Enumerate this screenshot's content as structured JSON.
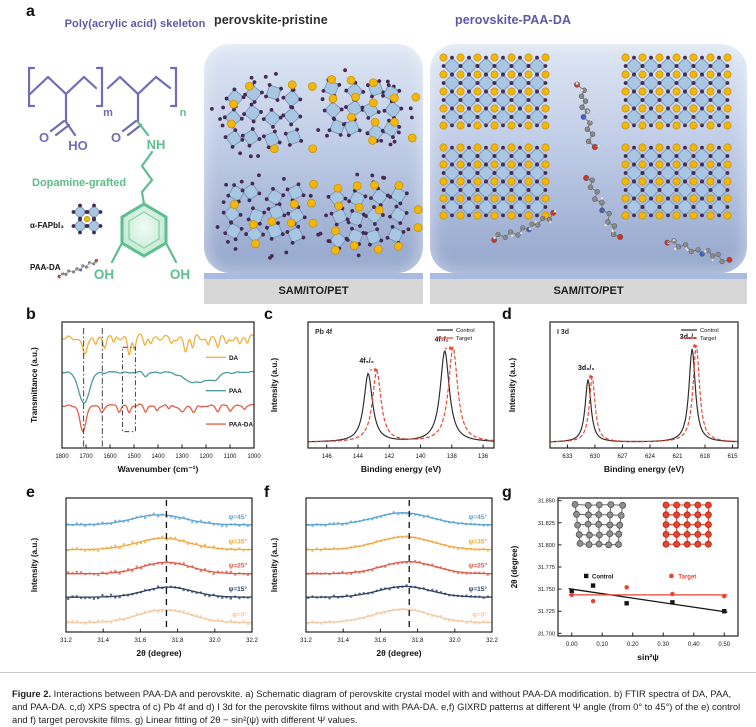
{
  "panel_letters": {
    "a": "a",
    "b": "b",
    "c": "c",
    "d": "d",
    "e": "e",
    "f": "f",
    "g": "g"
  },
  "colors": {
    "accent_purple": "#5b59a6",
    "accent_green": "#5bbd87",
    "control": "#2a2a2a",
    "target": "#e8432e"
  },
  "panel_a": {
    "left": {
      "title": "Poly(acrylic acid) skeleton",
      "dopamine": "Dopamine-grafted",
      "fapbi": "α-FAPbI₃",
      "paada": "PAA-DA",
      "ho": "HO",
      "nh": "NH",
      "oh1": "OH",
      "oh2": "OH",
      "o1": "O",
      "o2": "O",
      "m": "m",
      "n": "n"
    },
    "pristine": {
      "title": "perovskite-pristine",
      "substrate": "SAM/ITO/PET"
    },
    "paada_panel": {
      "title": "perovskite-PAA-DA",
      "substrate": "SAM/ITO/PET"
    }
  },
  "caption": {
    "label": "Figure 2.",
    "text": " Interactions between PAA-DA and perovskite. a) Schematic diagram of perovskite crystal model with and without PAA-DA modification. b) FTIR spectra of DA, PAA, and PAA-DA. c,d) XPS spectra of c) Pb 4f and d) I 3d for the perovskite films without and with PAA-DA. e,f) GIXRD patterns at different Ψ angle (from 0° to 45°) of the e) control and f) target perovskite films. g) Linear fitting of 2θ − sin²(ψ) with different Ψ values."
  },
  "chart_data": [
    {
      "panel": "b",
      "name": "ftir-spectra",
      "type": "line",
      "xlabel": "Wavenumber (cm⁻¹)",
      "ylabel": "Transmittance (a.u.)",
      "x_ticks": [
        "1800",
        "1700",
        "1600",
        "1500",
        "1400",
        "1300",
        "1200",
        "1100",
        "1000"
      ],
      "x_range": [
        1800,
        1000
      ],
      "series": [
        {
          "name": "DA",
          "color": "#efb13f",
          "baseline": 0.875,
          "wiggle": 0.013,
          "dips": [
            [
              1705,
              13,
              0.155
            ],
            [
              1660,
              8,
              0.05
            ],
            [
              1622,
              8,
              0.06
            ],
            [
              1585,
              7,
              0.05
            ],
            [
              1520,
              9,
              0.125
            ],
            [
              1498,
              7,
              0.085
            ],
            [
              1455,
              8,
              0.05
            ],
            [
              1430,
              7,
              0.04
            ],
            [
              1345,
              9,
              0.055
            ],
            [
              1285,
              10,
              0.105
            ],
            [
              1255,
              8,
              0.085
            ],
            [
              1190,
              8,
              0.05
            ],
            [
              1150,
              8,
              0.07
            ],
            [
              1115,
              8,
              0.055
            ],
            [
              1060,
              9,
              0.05
            ],
            [
              1028,
              7,
              0.04
            ]
          ]
        },
        {
          "name": "PAA",
          "color": "#4f9aa0",
          "baseline": 0.6,
          "wiggle": 0.004,
          "dips": [
            [
              1708,
              30,
              0.25
            ],
            [
              1452,
              12,
              0.03
            ],
            [
              1245,
              60,
              0.085
            ],
            [
              1165,
              30,
              0.05
            ]
          ]
        },
        {
          "name": "PAA-DA",
          "color": "#e2604a",
          "baseline": 0.335,
          "wiggle": 0.006,
          "dips": [
            [
              1712,
              17,
              0.215
            ],
            [
              1635,
              10,
              0.05
            ],
            [
              1562,
              9,
              0.045
            ],
            [
              1520,
              8,
              0.05
            ],
            [
              1452,
              9,
              0.045
            ],
            [
              1405,
              8,
              0.04
            ],
            [
              1355,
              8,
              0.03
            ],
            [
              1300,
              14,
              0.05
            ],
            [
              1250,
              12,
              0.06
            ],
            [
              1150,
              10,
              0.045
            ],
            [
              1100,
              9,
              0.035
            ],
            [
              1040,
              8,
              0.03
            ]
          ]
        }
      ],
      "guide_lines": [
        1710,
        1632
      ],
      "guide_box": {
        "x1": 1548,
        "x2": 1494,
        "y1": 0.13,
        "y2": 0.8
      },
      "legend": [
        {
          "label": "DA",
          "y": 0.72
        },
        {
          "label": "PAA",
          "y": 0.455
        },
        {
          "label": "PAA-DA",
          "y": 0.19
        }
      ]
    },
    {
      "panel": "c",
      "name": "xps-pb4f",
      "type": "line",
      "inner_title": "Pb 4f",
      "xlabel": "Binding energy (eV)",
      "ylabel": "Intensity (a.u.)",
      "x_ticks": [
        "146",
        "144",
        "142",
        "140",
        "138",
        "136"
      ],
      "x_range": [
        147.2,
        135.3
      ],
      "baseline": 0.05,
      "series": [
        {
          "name": "Control",
          "color": "#2a2a2a",
          "dashed": false,
          "peaks": [
            [
              143.35,
              0.6,
              0.33
            ],
            [
              138.45,
              0.8,
              0.35
            ]
          ]
        },
        {
          "name": "Target",
          "color": "#e8432e",
          "dashed": true,
          "peaks": [
            [
              142.8,
              0.62,
              0.33
            ],
            [
              137.92,
              0.83,
              0.35
            ]
          ]
        }
      ],
      "peak_labels": [
        {
          "text": "4f₅/₂",
          "x": 143.45,
          "y": 0.745
        },
        {
          "text": "4f₇/₂",
          "x": 138.65,
          "y": 0.935
        }
      ],
      "shift_arrows": [
        {
          "x1": 143.25,
          "x2": 142.7,
          "y": 0.685
        },
        {
          "x1": 138.45,
          "x2": 137.9,
          "y": 0.875
        }
      ],
      "legend": [
        "Control",
        "Target"
      ]
    },
    {
      "panel": "d",
      "name": "xps-i3d",
      "type": "line",
      "inner_title": "I 3d",
      "xlabel": "Binding energy (eV)",
      "ylabel": "Intensity (a.u.)",
      "x_ticks": [
        "633",
        "630",
        "627",
        "624",
        "621",
        "618",
        "615"
      ],
      "x_range": [
        634.9,
        614.4
      ],
      "baseline": 0.05,
      "series": [
        {
          "name": "Control",
          "color": "#2a2a2a",
          "dashed": false,
          "peaks": [
            [
              630.75,
              0.55,
              0.38
            ],
            [
              619.4,
              0.82,
              0.42
            ]
          ]
        },
        {
          "name": "Target",
          "color": "#e8432e",
          "dashed": true,
          "peaks": [
            [
              630.3,
              0.57,
              0.38
            ],
            [
              618.95,
              0.85,
              0.42
            ]
          ]
        }
      ],
      "peak_labels": [
        {
          "text": "3d₃/₂",
          "x": 630.95,
          "y": 0.685
        },
        {
          "text": "3d₅/₂",
          "x": 619.85,
          "y": 0.955
        }
      ],
      "shift_arrows": [
        {
          "x1": 630.65,
          "x2": 630.15,
          "y": 0.625
        },
        {
          "x1": 619.35,
          "x2": 618.8,
          "y": 0.895
        }
      ],
      "legend": [
        "Control",
        "Target"
      ]
    },
    {
      "panel": "e",
      "name": "gixrd-control",
      "type": "line-scatter",
      "xlabel": "2θ (degree)",
      "ylabel": "Intensity (a.u.)",
      "x_ticks": [
        "31.2",
        "31.4",
        "31.6",
        "31.8",
        "32.0",
        "32.2"
      ],
      "x_range": [
        31.2,
        32.2
      ],
      "dash_x": 31.74,
      "noise": 0.014,
      "seed": 42,
      "series": [
        {
          "name": "ψ=45°",
          "color": "#5ba3d4",
          "offset": 0.8,
          "center": 31.7,
          "amp": 0.075,
          "sigma": 0.14
        },
        {
          "name": "ψ=35°",
          "color": "#f0a840",
          "offset": 0.615,
          "center": 31.72,
          "amp": 0.085,
          "sigma": 0.14
        },
        {
          "name": "ψ=25°",
          "color": "#e05a47",
          "offset": 0.435,
          "center": 31.74,
          "amp": 0.085,
          "sigma": 0.13
        },
        {
          "name": "ψ=15°",
          "color": "#2e3f63",
          "offset": 0.26,
          "center": 31.75,
          "amp": 0.075,
          "sigma": 0.13
        },
        {
          "name": "ψ=0°",
          "color": "#f4c8a2",
          "offset": 0.07,
          "center": 31.73,
          "amp": 0.095,
          "sigma": 0.14
        }
      ]
    },
    {
      "panel": "f",
      "name": "gixrd-target",
      "type": "line-scatter",
      "xlabel": "2θ (degree)",
      "ylabel": "Intensity (a.u.)",
      "x_ticks": [
        "31.2",
        "31.4",
        "31.6",
        "31.8",
        "32.0",
        "32.2"
      ],
      "x_range": [
        31.2,
        32.2
      ],
      "dash_x": 31.755,
      "noise": 0.009,
      "seed": 77,
      "series": [
        {
          "name": "ψ=45°",
          "color": "#5ba3d4",
          "offset": 0.8,
          "center": 31.72,
          "amp": 0.09,
          "sigma": 0.15
        },
        {
          "name": "ψ=35°",
          "color": "#f0a840",
          "offset": 0.615,
          "center": 31.73,
          "amp": 0.095,
          "sigma": 0.15
        },
        {
          "name": "ψ=25°",
          "color": "#e05a47",
          "offset": 0.435,
          "center": 31.75,
          "amp": 0.09,
          "sigma": 0.14
        },
        {
          "name": "ψ=15°",
          "color": "#2e3f63",
          "offset": 0.26,
          "center": 31.73,
          "amp": 0.08,
          "sigma": 0.14
        },
        {
          "name": "ψ=0°",
          "color": "#f4c8a2",
          "offset": 0.07,
          "center": 31.72,
          "amp": 0.1,
          "sigma": 0.15
        }
      ]
    },
    {
      "panel": "g",
      "name": "linear-fit",
      "type": "scatter",
      "xlabel": "sin²ψ",
      "ylabel": "2θ (degree)",
      "x_ticks": [
        "0.00",
        "0.10",
        "0.20",
        "0.30",
        "0.40",
        "0.50"
      ],
      "y_ticks": [
        "31.700",
        "31.725",
        "31.750",
        "31.775",
        "31.800",
        "31.825",
        "31.850"
      ],
      "x_range": [
        -0.045,
        0.545
      ],
      "y_range": [
        31.697,
        31.853
      ],
      "series": [
        {
          "name": "Control",
          "color": "#141414",
          "marker": "square",
          "points": [
            [
              0.0,
              31.748
            ],
            [
              0.07,
              31.754
            ],
            [
              0.18,
              31.734
            ],
            [
              0.33,
              31.735
            ],
            [
              0.5,
              31.725
            ]
          ],
          "fit": [
            [
              -0.01,
              31.7505
            ],
            [
              0.51,
              31.724
            ]
          ]
        },
        {
          "name": "Target",
          "color": "#e8432e",
          "marker": "circle",
          "points": [
            [
              0.0,
              31.7435
            ],
            [
              0.07,
              31.7365
            ],
            [
              0.18,
              31.752
            ],
            [
              0.33,
              31.7445
            ],
            [
              0.5,
              31.742
            ]
          ],
          "fit": [
            [
              -0.01,
              31.7435
            ],
            [
              0.51,
              31.7435
            ]
          ]
        }
      ]
    }
  ]
}
